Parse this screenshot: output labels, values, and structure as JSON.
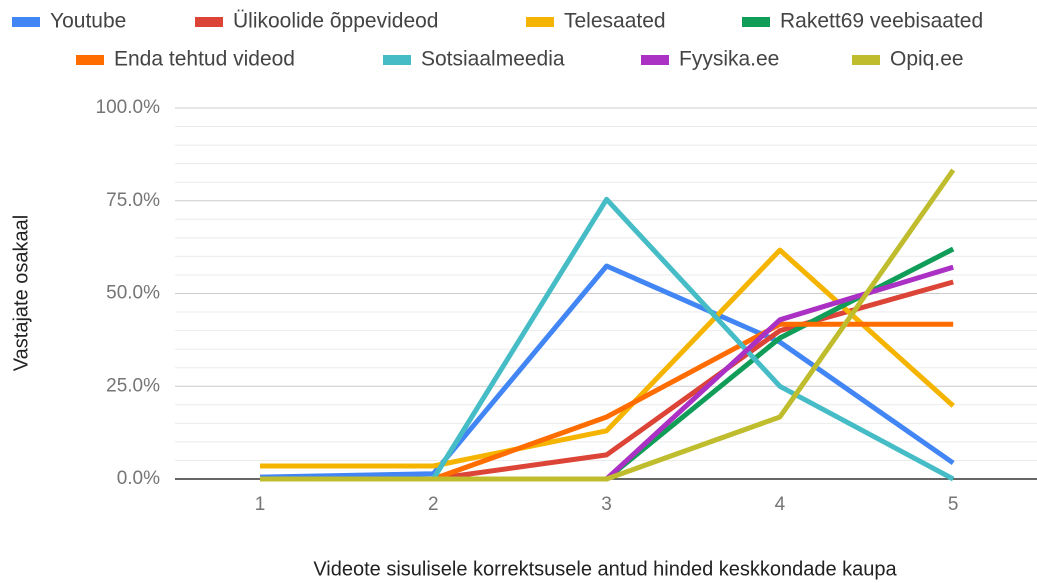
{
  "chart_data": {
    "type": "line",
    "x_label": "Videote sisulisele korrektsusele antud hinded keskkondade kaupa",
    "y_label": "Vastajate osakaal",
    "categories": [
      "1",
      "2",
      "3",
      "4",
      "5"
    ],
    "ylim": [
      0,
      100
    ],
    "yticks": [
      {
        "value": 0,
        "label": "0.0%"
      },
      {
        "value": 25,
        "label": "25.0%"
      },
      {
        "value": 50,
        "label": "50.0%"
      },
      {
        "value": 75,
        "label": "75.0%"
      },
      {
        "value": 100,
        "label": "100.0%"
      }
    ],
    "grid": true,
    "legend": "top",
    "series": [
      {
        "name": "Youtube",
        "color": "#4285f4",
        "values": [
          0.5,
          1.4,
          57.4,
          36.9,
          4.3
        ]
      },
      {
        "name": "Ülikoolide õppevideod",
        "color": "#db4437",
        "values": [
          0,
          0,
          6.5,
          40,
          53.1
        ]
      },
      {
        "name": "Telesaated",
        "color": "#f4b400",
        "values": [
          3.5,
          3.5,
          13,
          61.7,
          19.7
        ]
      },
      {
        "name": "Rakett69 veebisaated",
        "color": "#0f9d58",
        "values": [
          0,
          0,
          0,
          38,
          62
        ]
      },
      {
        "name": "Enda tehtud videod",
        "color": "#ff6d01",
        "values": [
          0,
          0,
          16.7,
          41.7,
          41.7
        ]
      },
      {
        "name": "Sotsiaalmeedia",
        "color": "#46bdc6",
        "values": [
          0,
          0,
          75.4,
          25,
          0
        ]
      },
      {
        "name": "Fyysika.ee",
        "color": "#ab30c4",
        "values": [
          0,
          0,
          0,
          42.9,
          57.1
        ]
      },
      {
        "name": "Opiq.ee",
        "color": "#bfbd2e",
        "values": [
          0,
          0,
          0,
          16.7,
          83.3
        ]
      }
    ]
  }
}
